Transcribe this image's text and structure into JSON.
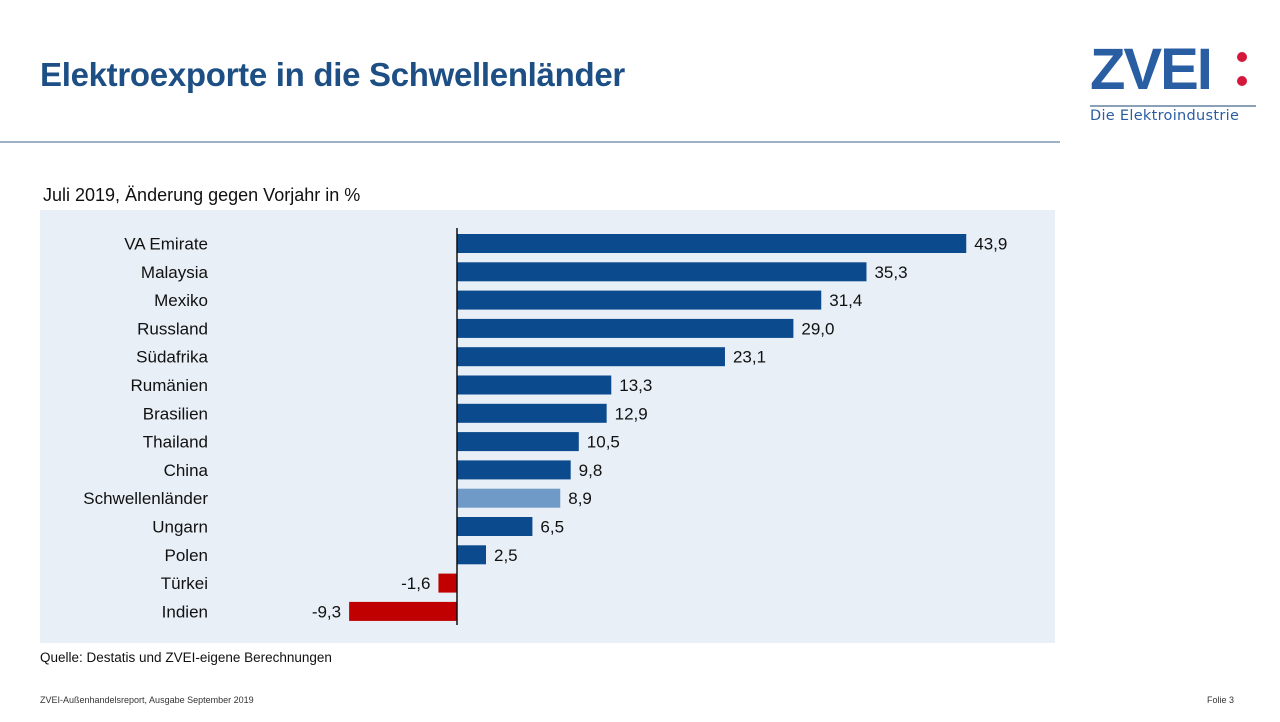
{
  "slide": {
    "title": "Elektroexporte in die Schwellenländer",
    "logo": {
      "name": "ZVEI",
      "tagline": "Die Elektroindustrie"
    },
    "source": "Quelle: Destatis und ZVEI-eigene Berechnungen",
    "footer_left": "ZVEI-Außenhandelsreport,  Ausgabe September  2019",
    "footer_right": "Folie 3"
  },
  "colors": {
    "title": "#1d4f85",
    "bar_positive": "#0b4a8c",
    "bar_highlight": "#6f99c6",
    "bar_negative": "#c00000",
    "panel_bg": "#e8eff7"
  },
  "chart_data": {
    "type": "bar",
    "orientation": "horizontal",
    "title": "Juli 2019, Änderung gegen Vorjahr in %",
    "xlabel": "",
    "ylabel": "",
    "unit": "%",
    "categories": [
      "VA Emirate",
      "Malaysia",
      "Mexiko",
      "Russland",
      "Südafrika",
      "Rumänien",
      "Brasilien",
      "Thailand",
      "China",
      "Schwellenländer",
      "Ungarn",
      "Polen",
      "Türkei",
      "Indien"
    ],
    "values": [
      43.9,
      35.3,
      31.4,
      29.0,
      23.1,
      13.3,
      12.9,
      10.5,
      9.8,
      8.9,
      6.5,
      2.5,
      -1.6,
      -9.3
    ],
    "labels": [
      "43,9",
      "35,3",
      "31,4",
      "29,0",
      "23,1",
      "13,3",
      "12,9",
      "10,5",
      "9,8",
      "8,9",
      "6,5",
      "2,5",
      "-1,6",
      "-9,3"
    ],
    "highlight": [
      "Schwellenländer"
    ],
    "xlim": [
      -9.3,
      43.9
    ],
    "grid": false,
    "legend": "none"
  }
}
